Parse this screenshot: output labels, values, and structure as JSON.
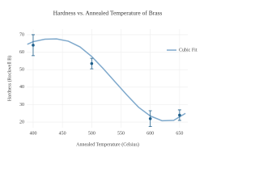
{
  "chart_data": {
    "type": "scatter",
    "title": "Hardness vs. Annealed Temperature of Brass",
    "x_label": "Annealed Temperature (Celsius)",
    "y_label": "Hardness (Rockwell B)",
    "xlim": [
      389,
      664
    ],
    "ylim": [
      16.8,
      73.2
    ],
    "xticks": [
      400,
      450,
      500,
      550,
      600,
      650
    ],
    "yticks": [
      20,
      30,
      40,
      50,
      60,
      70
    ],
    "grid": true,
    "legend": "top-right",
    "points": {
      "color": "#1f5f8b",
      "x": [
        400,
        500,
        600,
        650
      ],
      "values": [
        64,
        53.5,
        22,
        24
      ],
      "errors": [
        6,
        3,
        4.5,
        3
      ]
    },
    "series": [
      {
        "name": "Cubic Fit",
        "color": "#7fa9cc",
        "x": [
          390,
          400,
          420,
          440,
          460,
          480,
          500,
          520,
          540,
          560,
          580,
          600,
          620,
          640,
          660
        ],
        "values": [
          64.5,
          66,
          67.4,
          67.6,
          66.3,
          63,
          57.5,
          50.5,
          43,
          35.5,
          28.5,
          23.5,
          20.8,
          21,
          25
        ]
      }
    ]
  }
}
